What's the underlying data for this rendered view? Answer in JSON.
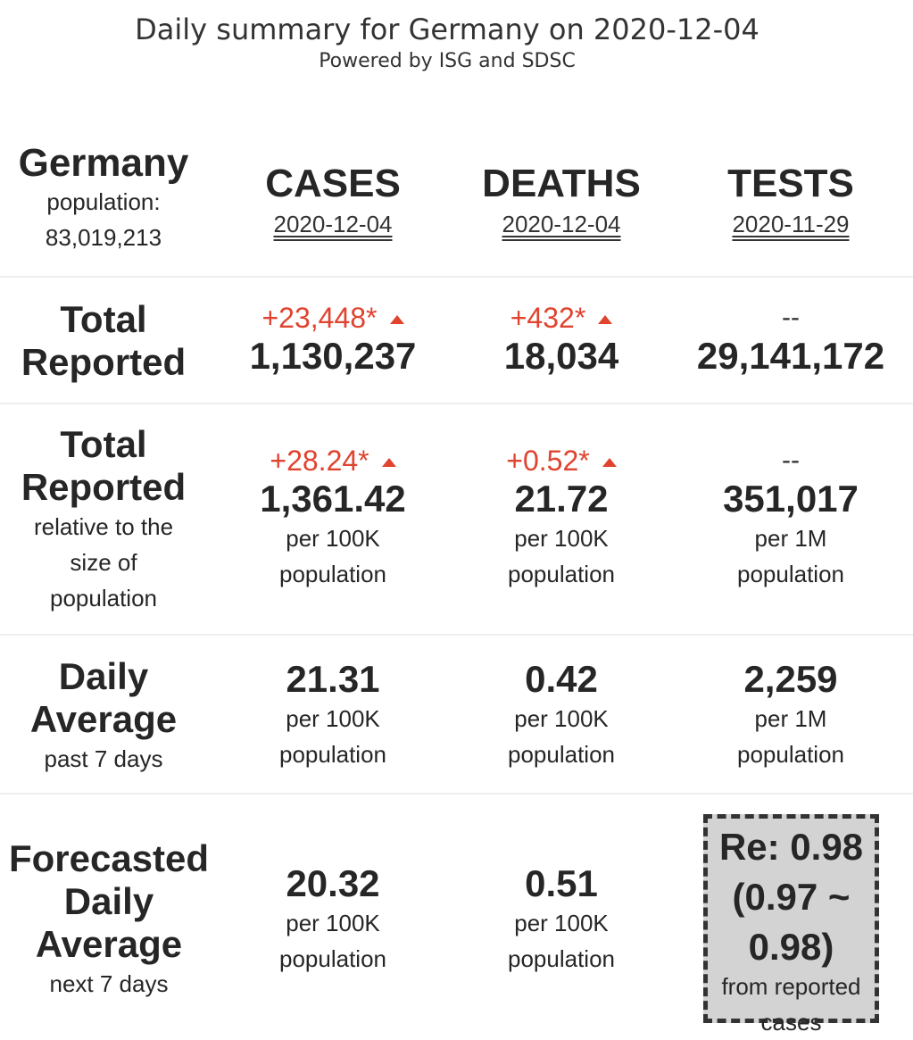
{
  "header": {
    "title": "Daily summary for Germany on 2020-12-04",
    "subtitle": "Powered by ISG and SDSC"
  },
  "country": {
    "name": "Germany",
    "population_label": "population:",
    "population_value": "83,019,213"
  },
  "columns": [
    {
      "label": "CASES",
      "date": "2020-12-04"
    },
    {
      "label": "DEATHS",
      "date": "2020-12-04"
    },
    {
      "label": "TESTS",
      "date": "2020-11-29"
    }
  ],
  "rows": {
    "total_reported": {
      "label_line1": "Total",
      "label_line2": "Reported",
      "cases": {
        "change": "+23,448*",
        "value": "1,130,237"
      },
      "deaths": {
        "change": "+432*",
        "value": "18,034"
      },
      "tests": {
        "change": "--",
        "value": "29,141,172"
      }
    },
    "total_relative": {
      "label_line1": "Total",
      "label_line2": "Reported",
      "sub_line1": "relative to the",
      "sub_line2": "size of",
      "sub_line3": "population",
      "cases": {
        "change": "+28.24*",
        "value": "1,361.42",
        "unit1": "per 100K",
        "unit2": "population"
      },
      "deaths": {
        "change": "+0.52*",
        "value": "21.72",
        "unit1": "per 100K",
        "unit2": "population"
      },
      "tests": {
        "change": "--",
        "value": "351,017",
        "unit1": "per 1M",
        "unit2": "population"
      }
    },
    "daily_average": {
      "label_line1": "Daily",
      "label_line2": "Average",
      "sub": "past 7 days",
      "cases": {
        "value": "21.31",
        "unit1": "per 100K",
        "unit2": "population"
      },
      "deaths": {
        "value": "0.42",
        "unit1": "per 100K",
        "unit2": "population"
      },
      "tests": {
        "value": "2,259",
        "unit1": "per 1M",
        "unit2": "population"
      }
    },
    "forecast": {
      "label_line1": "Forecasted",
      "label_line2": "Daily",
      "label_line3": "Average",
      "sub": "next 7 days",
      "cases": {
        "value": "20.32",
        "unit1": "per 100K",
        "unit2": "population"
      },
      "deaths": {
        "value": "0.51",
        "unit1": "per 100K",
        "unit2": "population"
      },
      "re": {
        "line1": "Re: 0.98",
        "line2": "(0.97 ~",
        "line3": "0.98)",
        "note1": "from reported",
        "note2": "cases"
      }
    }
  },
  "colors": {
    "increase": "#e0432f",
    "text": "#262626",
    "re_box": "#d3d3d3"
  }
}
